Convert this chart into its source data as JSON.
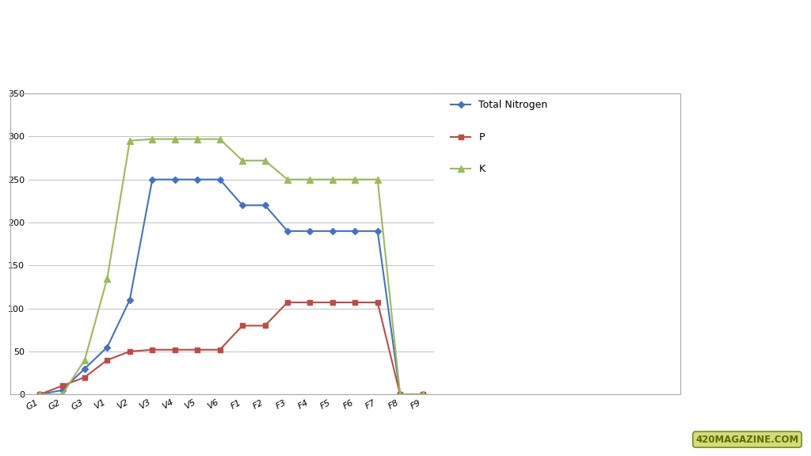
{
  "categories": [
    "G1",
    "G2",
    "G3",
    "V1",
    "V2",
    "V3",
    "V4",
    "V5",
    "V6",
    "F1",
    "F2",
    "F3",
    "F4",
    "F5",
    "F6",
    "F7",
    "F8",
    "F9"
  ],
  "nitrogen": [
    0,
    5,
    30,
    55,
    110,
    250,
    250,
    250,
    250,
    220,
    220,
    190,
    190,
    190,
    190,
    190,
    0,
    0
  ],
  "phosphorus": [
    0,
    10,
    20,
    40,
    50,
    52,
    52,
    52,
    52,
    80,
    80,
    107,
    107,
    107,
    107,
    107,
    0,
    0
  ],
  "potassium": [
    0,
    0,
    40,
    135,
    295,
    297,
    297,
    297,
    297,
    272,
    272,
    250,
    250,
    250,
    250,
    250,
    0,
    0
  ],
  "nitrogen_color": "#4472C4",
  "phosphorus_color": "#BE4B48",
  "potassium_color": "#9BBB59",
  "ylim": [
    0,
    350
  ],
  "yticks": [
    0,
    50,
    100,
    150,
    200,
    250,
    300,
    350
  ],
  "legend_labels": [
    "Total Nitrogen",
    "P",
    "K"
  ],
  "background_color": "#FFFFFF",
  "plot_bg": "#FFFFFF",
  "grid_color": "#C8C8C8",
  "box_color": "#AAAAAA"
}
